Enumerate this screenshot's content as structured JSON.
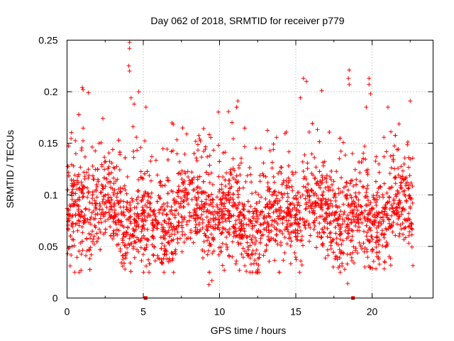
{
  "chart_data": {
    "type": "scatter",
    "title": "Day 062 of 2018, SRMTID for receiver p779",
    "xlabel": "GPS time / hours",
    "ylabel": "SRMTID / TECUs",
    "xlim": [
      0,
      24
    ],
    "ylim": [
      0,
      0.25
    ],
    "xticks": [
      0,
      5,
      10,
      15,
      20
    ],
    "xtick_labels": [
      "0",
      "5",
      "10",
      "15",
      "20"
    ],
    "yticks": [
      0,
      0.05,
      0.1,
      0.15,
      0.2,
      0.25
    ],
    "ytick_labels": [
      "0",
      "0.05",
      "0.1",
      "0.15",
      "0.2",
      "0.25"
    ],
    "grid": true,
    "marker": "+",
    "color": "#ff0000",
    "series": [
      {
        "name": "SRMTID",
        "note": "Dense cloud of roughly 2600 points spanning 0 to 22.7 h, mostly 0.03-0.13 TECU; individual points are summarized by envelope values below plus listed outliers.",
        "hours_range": [
          0,
          22.7
        ],
        "typical_range": [
          0.03,
          0.13
        ],
        "median_approx": 0.08,
        "outliers": [
          {
            "x": 4.1,
            "y": 0.248
          },
          {
            "x": 4.1,
            "y": 0.242
          },
          {
            "x": 4.05,
            "y": 0.225
          },
          {
            "x": 4.1,
            "y": 0.22
          },
          {
            "x": 1.0,
            "y": 0.204
          },
          {
            "x": 1.05,
            "y": 0.202
          },
          {
            "x": 1.4,
            "y": 0.199
          },
          {
            "x": 4.7,
            "y": 0.2
          },
          {
            "x": 4.4,
            "y": 0.188
          },
          {
            "x": 4.2,
            "y": 0.194
          },
          {
            "x": 11.2,
            "y": 0.191
          },
          {
            "x": 15.3,
            "y": 0.194
          },
          {
            "x": 15.5,
            "y": 0.213
          },
          {
            "x": 15.7,
            "y": 0.21
          },
          {
            "x": 16.7,
            "y": 0.201
          },
          {
            "x": 18.5,
            "y": 0.221
          },
          {
            "x": 18.45,
            "y": 0.213
          },
          {
            "x": 18.5,
            "y": 0.207
          },
          {
            "x": 19.8,
            "y": 0.213
          },
          {
            "x": 19.8,
            "y": 0.207
          },
          {
            "x": 19.9,
            "y": 0.198
          },
          {
            "x": 22.5,
            "y": 0.191
          },
          {
            "x": 9.3,
            "y": 0.013
          },
          {
            "x": 9.5,
            "y": 0.017
          },
          {
            "x": 18.4,
            "y": 0.014
          },
          {
            "x": 0.5,
            "y": 0.025
          },
          {
            "x": 0.8,
            "y": 0.025
          },
          {
            "x": 3.8,
            "y": 0.028
          }
        ],
        "zero_markers": [
          5.15,
          18.75
        ]
      }
    ]
  }
}
